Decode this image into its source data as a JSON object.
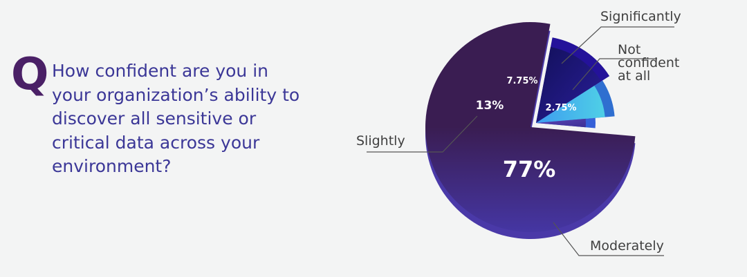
{
  "question": {
    "marker": "Q",
    "text": "How confident are you in your organization’s ability to discover all sensitive or critical data across your environment?"
  },
  "chart_data": {
    "type": "pie",
    "style": "3d-exploded",
    "title": "",
    "slices": [
      {
        "label": "Moderately",
        "value": 77,
        "value_label": "77%",
        "color": "#3a2368"
      },
      {
        "label": "Slightly",
        "value": 13,
        "value_label": "13%",
        "color": "#1f1a78"
      },
      {
        "label": "Significantly",
        "value": 7.75,
        "value_label": "7.75%",
        "color": "#3ab4e8"
      },
      {
        "label": "Not confident at all",
        "value": 2.75,
        "value_label": "2.75%",
        "color": "#4b3aa0"
      }
    ],
    "not_confident_lines": [
      "Not",
      "confident",
      "at all"
    ]
  }
}
